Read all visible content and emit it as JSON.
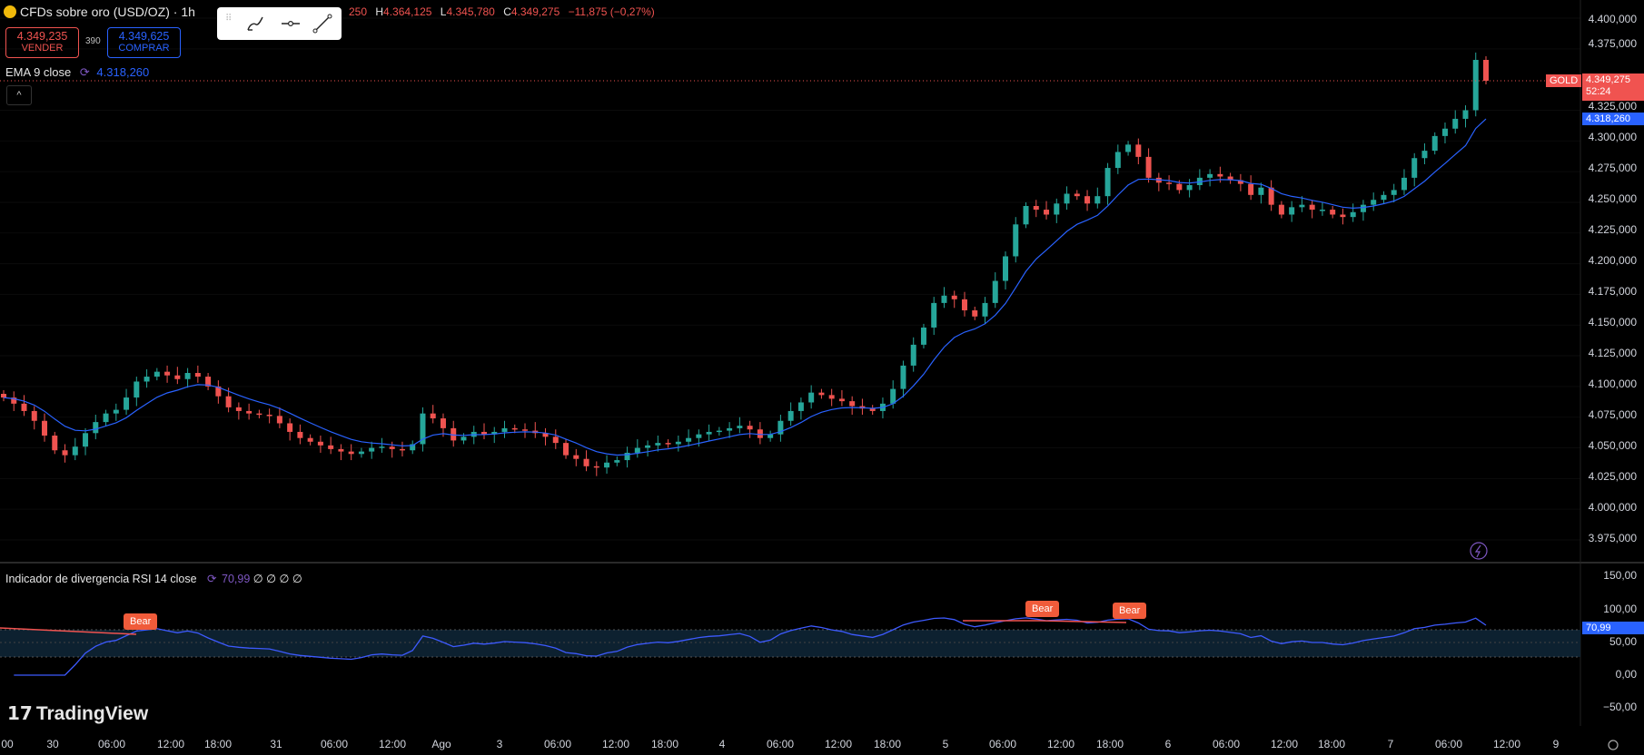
{
  "header": {
    "title": "CFDs sobre oro (USD/OZ) · 1h",
    "ohlc_partial_open": "250",
    "ohlc_h_key": "H",
    "ohlc_h": "4.364,125",
    "ohlc_l_key": "L",
    "ohlc_l": "4.345,780",
    "ohlc_c_key": "C",
    "ohlc_c": "4.349,275",
    "ohlc_change": "−11,875 (−0,27%)"
  },
  "trade": {
    "sell_price": "4.349,235",
    "sell_label": "VENDER",
    "spread": "390",
    "buy_price": "4.349,625",
    "buy_label": "COMPRAR"
  },
  "toolbar": {
    "icons": [
      "brush-icon",
      "horizontal-line-icon",
      "trend-line-icon"
    ]
  },
  "indicators": {
    "ema_label": "EMA 9 close",
    "ema_value": "4.318,260",
    "collapse_glyph": "^",
    "rsi_label": "Indicador de divergencia RSI 14 close",
    "rsi_value": "70,99",
    "rsi_extras": "∅ ∅ ∅ ∅"
  },
  "price_axis": {
    "labels": [
      "4.400,000",
      "4.375,000",
      "4.325,000",
      "4.300,000",
      "4.275,000",
      "4.250,000",
      "4.225,000",
      "4.200,000",
      "4.175,000",
      "4.150,000",
      "4.125,000",
      "4.100,000",
      "4.075,000",
      "4.050,000",
      "4.025,000",
      "4.000,000",
      "3.975,000"
    ],
    "symbol_tag": "GOLD",
    "last_price": "4.349,275",
    "countdown": "52:24",
    "ema_tag": "4.318,260"
  },
  "rsi_axis": {
    "labels": [
      "150,00",
      "100,00",
      "50,00",
      "0,00",
      "−50,00"
    ],
    "value_tag": "70,99"
  },
  "time_axis": {
    "labels": [
      "00",
      "30",
      "06:00",
      "12:00",
      "18:00",
      "31",
      "06:00",
      "12:00",
      "Ago",
      "3",
      "06:00",
      "12:00",
      "18:00",
      "4",
      "06:00",
      "12:00",
      "18:00",
      "5",
      "06:00",
      "12:00",
      "18:00",
      "6",
      "06:00",
      "12:00",
      "18:00",
      "7",
      "06:00",
      "12:00",
      "9"
    ]
  },
  "bear_labels": [
    "Bear",
    "Bear",
    "Bear"
  ],
  "branding": {
    "logo_text": "TradingView"
  },
  "colors": {
    "up": "#26a69a",
    "down": "#ef5350",
    "ema": "#2962ff",
    "rsi": "#3d5afe",
    "bear": "#f05b3a"
  },
  "chart_data": {
    "type": "candlestick",
    "price_close_series": [
      4091,
      4086,
      4080,
      4072,
      4060,
      4048,
      4044,
      4051,
      4062,
      4071,
      4078,
      4081,
      4091,
      4104,
      4108,
      4112,
      4109,
      4106,
      4111,
      4108,
      4100,
      4092,
      4083,
      4080,
      4078,
      4077,
      4076,
      4070,
      4063,
      4058,
      4055,
      4052,
      4049,
      4047,
      4045,
      4047,
      4050,
      4051,
      4049,
      4048,
      4053,
      4078,
      4074,
      4066,
      4056,
      4059,
      4063,
      4061,
      4063,
      4066,
      4065,
      4064,
      4062,
      4059,
      4054,
      4044,
      4041,
      4035,
      4034,
      4038,
      4040,
      4046,
      4050,
      4052,
      4054,
      4053,
      4055,
      4058,
      4061,
      4063,
      4064,
      4066,
      4068,
      4065,
      4058,
      4061,
      4072,
      4080,
      4087,
      4095,
      4093,
      4090,
      4088,
      4084,
      4082,
      4080,
      4086,
      4098,
      4117,
      4134,
      4148,
      4168,
      4174,
      4171,
      4162,
      4157,
      4168,
      4186,
      4206,
      4232,
      4247,
      4244,
      4240,
      4249,
      4257,
      4255,
      4249,
      4255,
      4278,
      4291,
      4297,
      4287,
      4270,
      4266,
      4265,
      4260,
      4264,
      4270,
      4273,
      4271,
      4268,
      4265,
      4256,
      4262,
      4248,
      4240,
      4246,
      4248,
      4244,
      4244,
      4240,
      4238,
      4242,
      4248,
      4252,
      4256,
      4260,
      4270,
      4286,
      4292,
      4304,
      4310,
      4318,
      4325,
      4366,
      4349
    ],
    "ema_9_close": "4.318,260",
    "rsi_last": "70,99",
    "y_min": 3975,
    "y_max": 4400
  }
}
